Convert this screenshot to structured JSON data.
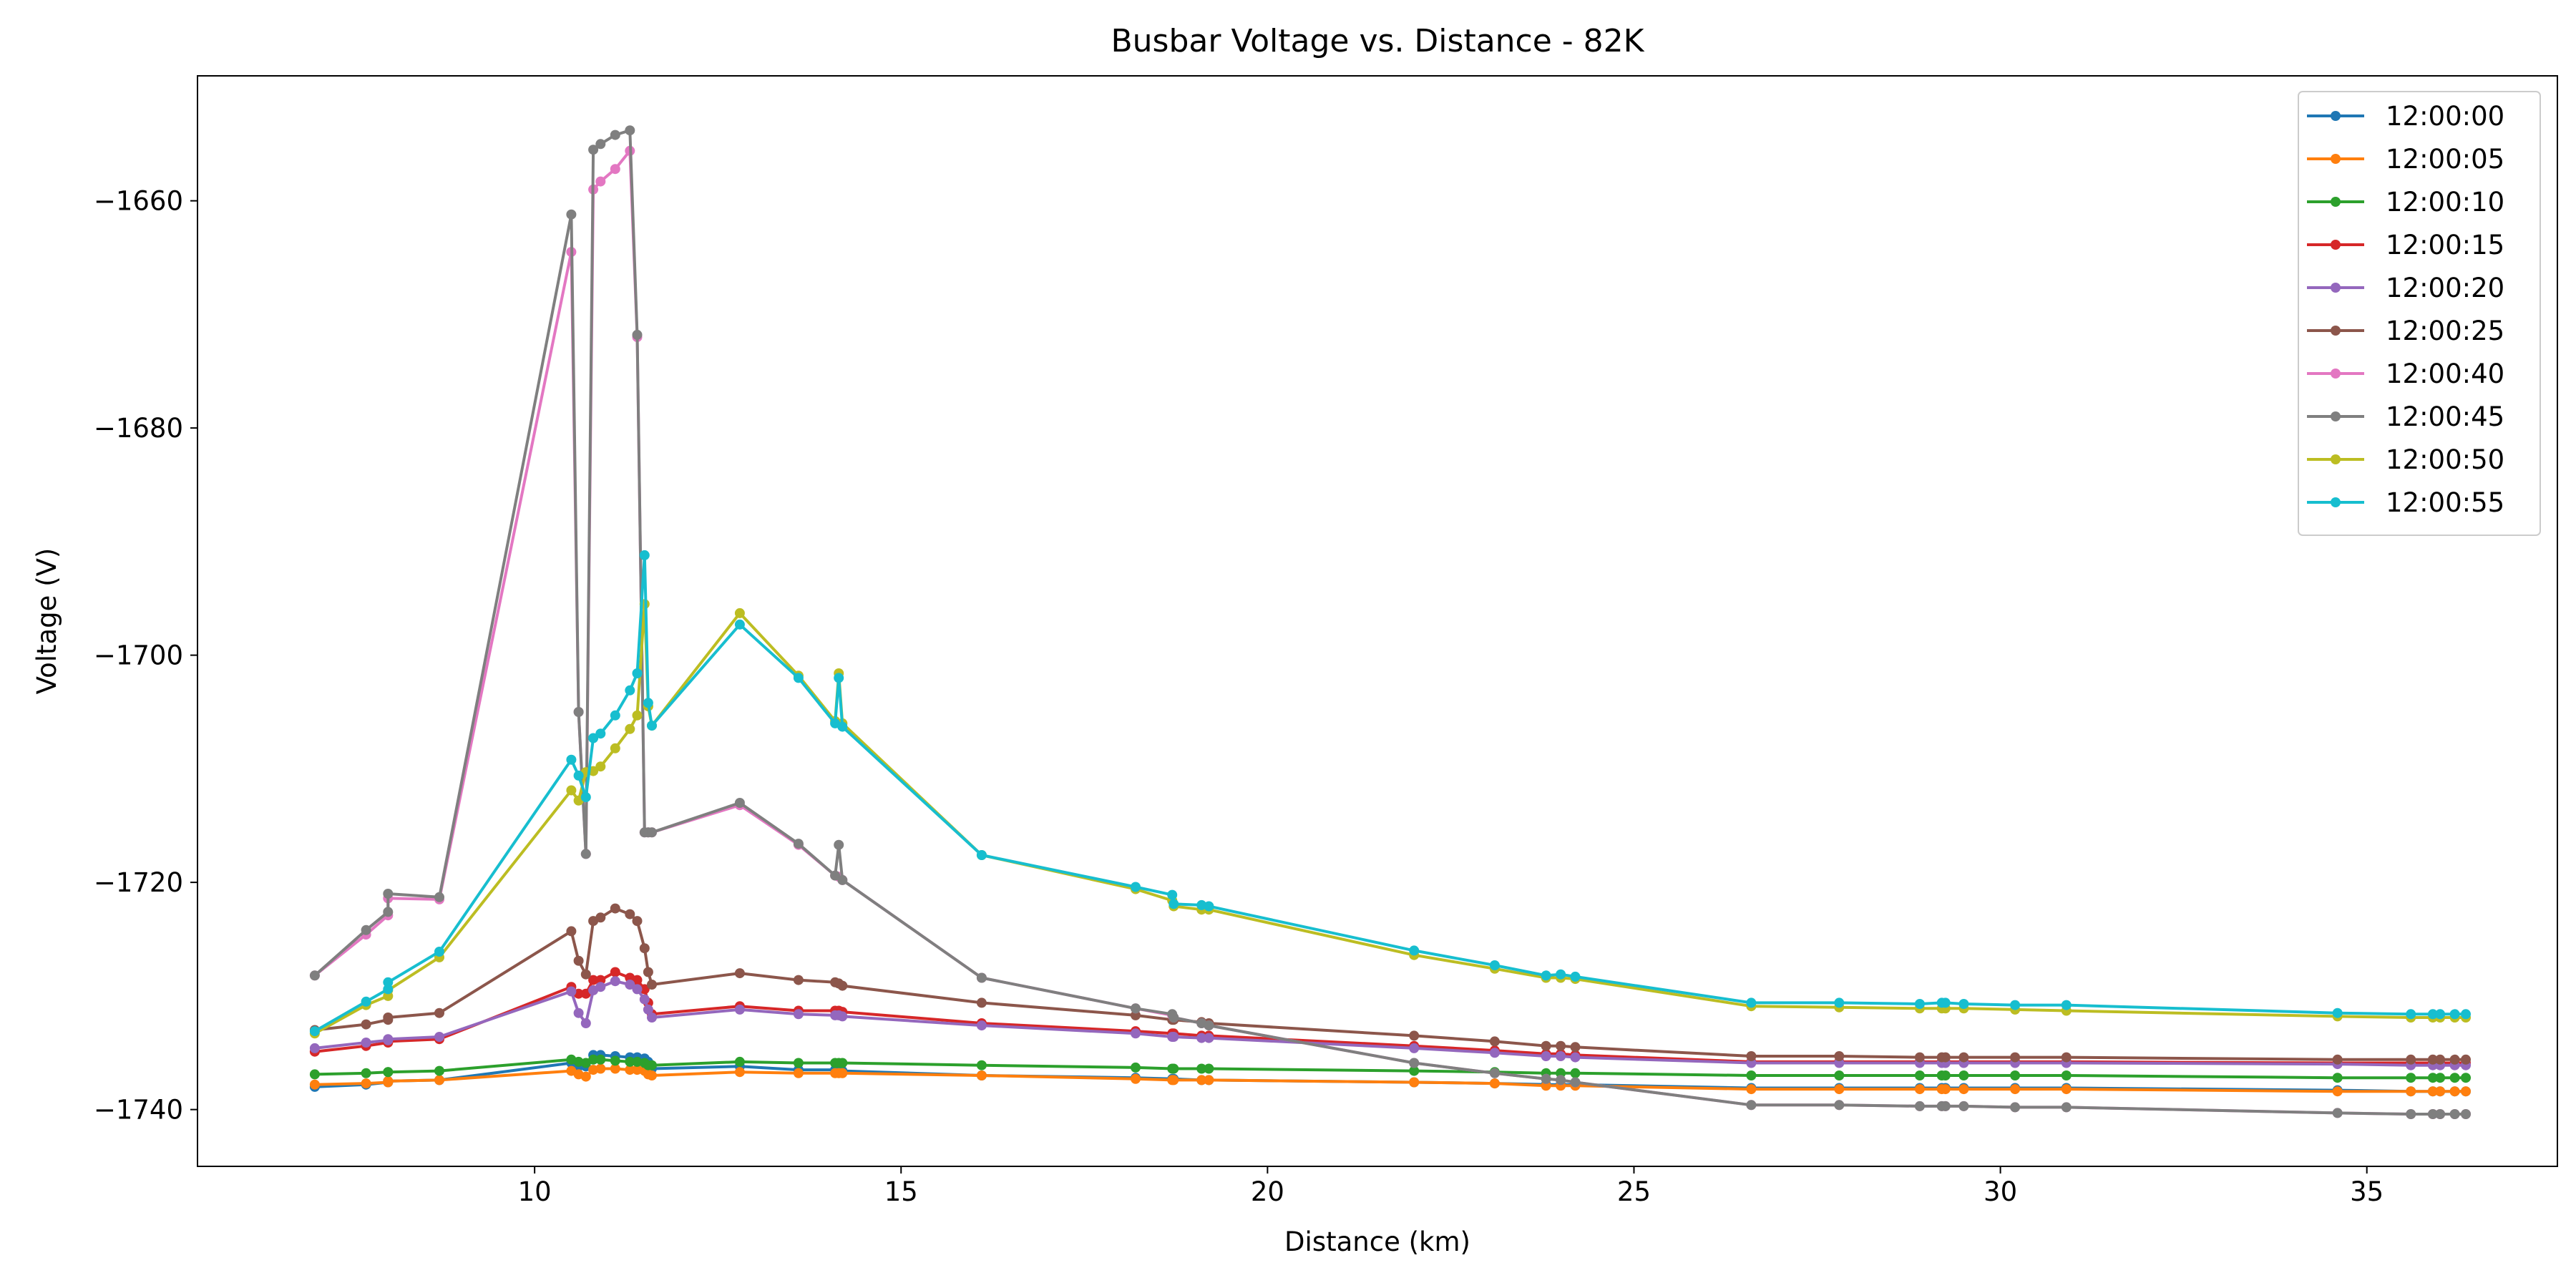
{
  "chart_data": {
    "type": "line",
    "title": "Busbar Voltage vs. Distance - 82K",
    "xlabel": "Distance (km)",
    "ylabel": "Voltage (V)",
    "xlim": [
      5.4,
      37.6
    ],
    "ylim": [
      -1745,
      -1649
    ],
    "x_ticks": [
      10,
      15,
      20,
      25,
      30,
      35
    ],
    "y_ticks": [
      -1740,
      -1720,
      -1700,
      -1680,
      -1660
    ],
    "grid": false,
    "legend_position": "top-right",
    "x": [
      7.0,
      7.7,
      8.0,
      8.0,
      8.7,
      10.5,
      10.6,
      10.7,
      10.8,
      10.9,
      11.1,
      11.3,
      11.4,
      11.5,
      11.55,
      11.6,
      12.8,
      13.6,
      14.1,
      14.15,
      14.2,
      16.1,
      18.2,
      18.7,
      18.72,
      19.1,
      19.2,
      22.0,
      23.1,
      23.8,
      24.0,
      24.2,
      26.6,
      27.8,
      28.9,
      29.2,
      29.25,
      29.5,
      30.2,
      30.9,
      34.6,
      35.6,
      35.9,
      36.0,
      36.2,
      36.35
    ],
    "series": [
      {
        "name": "12:00:00",
        "color": "#1f77b4",
        "values": [
          -1738,
          -1737.8,
          -1737.6,
          -1737.5,
          -1737.4,
          -1735.9,
          -1736.2,
          -1736.2,
          -1735.2,
          -1735.2,
          -1735.3,
          -1735.4,
          -1735.4,
          -1735.5,
          -1735.8,
          -1736.4,
          -1736.2,
          -1736.5,
          -1736.5,
          -1736.5,
          -1736.6,
          -1737,
          -1737.2,
          -1737.3,
          -1737.3,
          -1737.4,
          -1737.4,
          -1737.6,
          -1737.7,
          -1737.8,
          -1737.8,
          -1737.8,
          -1738.1,
          -1738.1,
          -1738.1,
          -1738.1,
          -1738.1,
          -1738.1,
          -1738.1,
          -1738.1,
          -1738.3,
          -1738.4,
          -1738.4,
          -1738.4,
          -1738.4,
          -1738.4
        ]
      },
      {
        "name": "12:00:05",
        "color": "#ff7f0e",
        "values": [
          -1737.8,
          -1737.7,
          -1737.6,
          -1737.5,
          -1737.4,
          -1736.6,
          -1736.9,
          -1737.1,
          -1736.5,
          -1736.4,
          -1736.4,
          -1736.5,
          -1736.5,
          -1736.6,
          -1736.9,
          -1737,
          -1736.7,
          -1736.8,
          -1736.8,
          -1736.8,
          -1736.8,
          -1737,
          -1737.3,
          -1737.4,
          -1737.4,
          -1737.4,
          -1737.4,
          -1737.6,
          -1737.7,
          -1737.9,
          -1737.9,
          -1737.9,
          -1738.2,
          -1738.2,
          -1738.2,
          -1738.2,
          -1738.2,
          -1738.2,
          -1738.2,
          -1738.2,
          -1738.4,
          -1738.4,
          -1738.4,
          -1738.4,
          -1738.4,
          -1738.4
        ]
      },
      {
        "name": "12:00:10",
        "color": "#2ca02c",
        "values": [
          -1736.9,
          -1736.8,
          -1736.7,
          -1736.7,
          -1736.6,
          -1735.6,
          -1735.8,
          -1735.9,
          -1735.6,
          -1735.6,
          -1735.7,
          -1735.8,
          -1735.8,
          -1735.9,
          -1736.1,
          -1736.1,
          -1735.8,
          -1735.9,
          -1735.9,
          -1735.9,
          -1735.9,
          -1736.1,
          -1736.3,
          -1736.4,
          -1736.4,
          -1736.4,
          -1736.4,
          -1736.6,
          -1736.7,
          -1736.8,
          -1736.8,
          -1736.8,
          -1737,
          -1737,
          -1737,
          -1737,
          -1737,
          -1737,
          -1737,
          -1737,
          -1737.2,
          -1737.2,
          -1737.2,
          -1737.2,
          -1737.2,
          -1737.2
        ]
      },
      {
        "name": "12:00:15",
        "color": "#d62728",
        "values": [
          -1734.9,
          -1734.4,
          -1734.1,
          -1734,
          -1733.8,
          -1729.2,
          -1729.8,
          -1729.8,
          -1728.6,
          -1728.6,
          -1727.9,
          -1728.4,
          -1728.6,
          -1729.4,
          -1730.6,
          -1731.6,
          -1730.9,
          -1731.3,
          -1731.3,
          -1731.3,
          -1731.4,
          -1732.4,
          -1733.1,
          -1733.3,
          -1733.3,
          -1733.5,
          -1733.5,
          -1734.4,
          -1734.8,
          -1735.1,
          -1735.1,
          -1735.2,
          -1735.8,
          -1735.8,
          -1735.8,
          -1735.8,
          -1735.8,
          -1735.8,
          -1735.8,
          -1735.8,
          -1735.9,
          -1735.9,
          -1735.9,
          -1735.9,
          -1735.9,
          -1735.9
        ]
      },
      {
        "name": "12:00:20",
        "color": "#9467bd",
        "values": [
          -1734.6,
          -1734.1,
          -1733.9,
          -1733.8,
          -1733.6,
          -1729.6,
          -1731.5,
          -1732.4,
          -1729.5,
          -1729.2,
          -1728.7,
          -1729,
          -1729.4,
          -1730.3,
          -1731.2,
          -1731.9,
          -1731.2,
          -1731.6,
          -1731.7,
          -1731.7,
          -1731.8,
          -1732.6,
          -1733.3,
          -1733.6,
          -1733.6,
          -1733.7,
          -1733.7,
          -1734.6,
          -1735,
          -1735.3,
          -1735.3,
          -1735.4,
          -1735.9,
          -1735.9,
          -1735.9,
          -1735.9,
          -1735.9,
          -1735.9,
          -1735.9,
          -1735.9,
          -1736,
          -1736.1,
          -1736.1,
          -1736.1,
          -1736.1,
          -1736.1
        ]
      },
      {
        "name": "12:00:25",
        "color": "#8c564b",
        "values": [
          -1733,
          -1732.5,
          -1732.1,
          -1731.9,
          -1731.5,
          -1724.3,
          -1726.9,
          -1728.1,
          -1723.4,
          -1723.1,
          -1722.3,
          -1722.8,
          -1723.4,
          -1725.8,
          -1727.9,
          -1729,
          -1728,
          -1728.6,
          -1728.8,
          -1728.9,
          -1729.1,
          -1730.6,
          -1731.7,
          -1732.1,
          -1732.1,
          -1732.3,
          -1732.4,
          -1733.5,
          -1734,
          -1734.4,
          -1734.4,
          -1734.5,
          -1735.3,
          -1735.3,
          -1735.4,
          -1735.4,
          -1735.4,
          -1735.4,
          -1735.4,
          -1735.4,
          -1735.6,
          -1735.6,
          -1735.6,
          -1735.6,
          -1735.6,
          -1735.6
        ]
      },
      {
        "name": "12:00:40",
        "color": "#e377c2",
        "values": [
          -1728.2,
          -1724.6,
          -1722.9,
          -1721.4,
          -1721.5,
          -1664.5,
          -1705,
          -1717.5,
          -1659,
          -1658.3,
          -1657.2,
          -1655.6,
          -1672,
          -1715.6,
          -1715.6,
          -1715.6,
          -1713.2,
          -1716.7,
          -1719.4,
          -1719.5,
          -1719.8,
          -1728.4,
          -1731.1,
          -1731.7,
          -1731.9,
          -1732.4,
          -1732.6,
          -1735.9,
          -1736.8,
          -1737.3,
          -1737.4,
          -1737.6,
          -1739.6,
          -1739.6,
          -1739.7,
          -1739.7,
          -1739.7,
          -1739.7,
          -1739.8,
          -1739.8,
          -1740.3,
          -1740.4,
          -1740.4,
          -1740.4,
          -1740.4,
          -1740.4
        ]
      },
      {
        "name": "12:00:45",
        "color": "#7f7f7f",
        "values": [
          -1728.2,
          -1724.2,
          -1722.6,
          -1721,
          -1721.3,
          -1661.2,
          -1705,
          -1717.5,
          -1655.5,
          -1655,
          -1654.2,
          -1653.8,
          -1671.8,
          -1715.6,
          -1715.6,
          -1715.6,
          -1713,
          -1716.6,
          -1719.4,
          -1716.7,
          -1719.8,
          -1728.4,
          -1731.1,
          -1731.6,
          -1731.9,
          -1732.4,
          -1732.6,
          -1735.9,
          -1736.8,
          -1737.3,
          -1737.4,
          -1737.6,
          -1739.6,
          -1739.6,
          -1739.7,
          -1739.7,
          -1739.7,
          -1739.7,
          -1739.8,
          -1739.8,
          -1740.3,
          -1740.4,
          -1740.4,
          -1740.4,
          -1740.4,
          -1740.4
        ]
      },
      {
        "name": "12:00:50",
        "color": "#bcbd22",
        "values": [
          -1733.3,
          -1730.8,
          -1730,
          -1729.5,
          -1726.6,
          -1711.9,
          -1712.8,
          -1710.3,
          -1710.2,
          -1709.8,
          -1708.2,
          -1706.5,
          -1705.3,
          -1695.5,
          -1704.5,
          -1706.2,
          -1696.3,
          -1701.8,
          -1705.8,
          -1701.6,
          -1706,
          -1717.6,
          -1720.6,
          -1721.6,
          -1722.1,
          -1722.4,
          -1722.4,
          -1726.4,
          -1727.6,
          -1728.4,
          -1728.4,
          -1728.5,
          -1730.9,
          -1731,
          -1731.1,
          -1731.1,
          -1731.1,
          -1731.1,
          -1731.2,
          -1731.3,
          -1731.8,
          -1731.9,
          -1731.9,
          -1731.9,
          -1731.9,
          -1731.9
        ]
      },
      {
        "name": "12:00:55",
        "color": "#17becf",
        "values": [
          -1733.1,
          -1730.5,
          -1729.4,
          -1728.8,
          -1726.1,
          -1709.2,
          -1710.6,
          -1712.5,
          -1707.3,
          -1706.9,
          -1705.3,
          -1703.1,
          -1701.6,
          -1691.2,
          -1704.2,
          -1706.2,
          -1697.3,
          -1702,
          -1706,
          -1702,
          -1706.3,
          -1717.6,
          -1720.4,
          -1721.1,
          -1721.9,
          -1722,
          -1722.1,
          -1726,
          -1727.3,
          -1728.2,
          -1728.1,
          -1728.3,
          -1730.6,
          -1730.6,
          -1730.7,
          -1730.6,
          -1730.6,
          -1730.7,
          -1730.8,
          -1730.8,
          -1731.5,
          -1731.6,
          -1731.6,
          -1731.6,
          -1731.6,
          -1731.6
        ]
      }
    ]
  }
}
